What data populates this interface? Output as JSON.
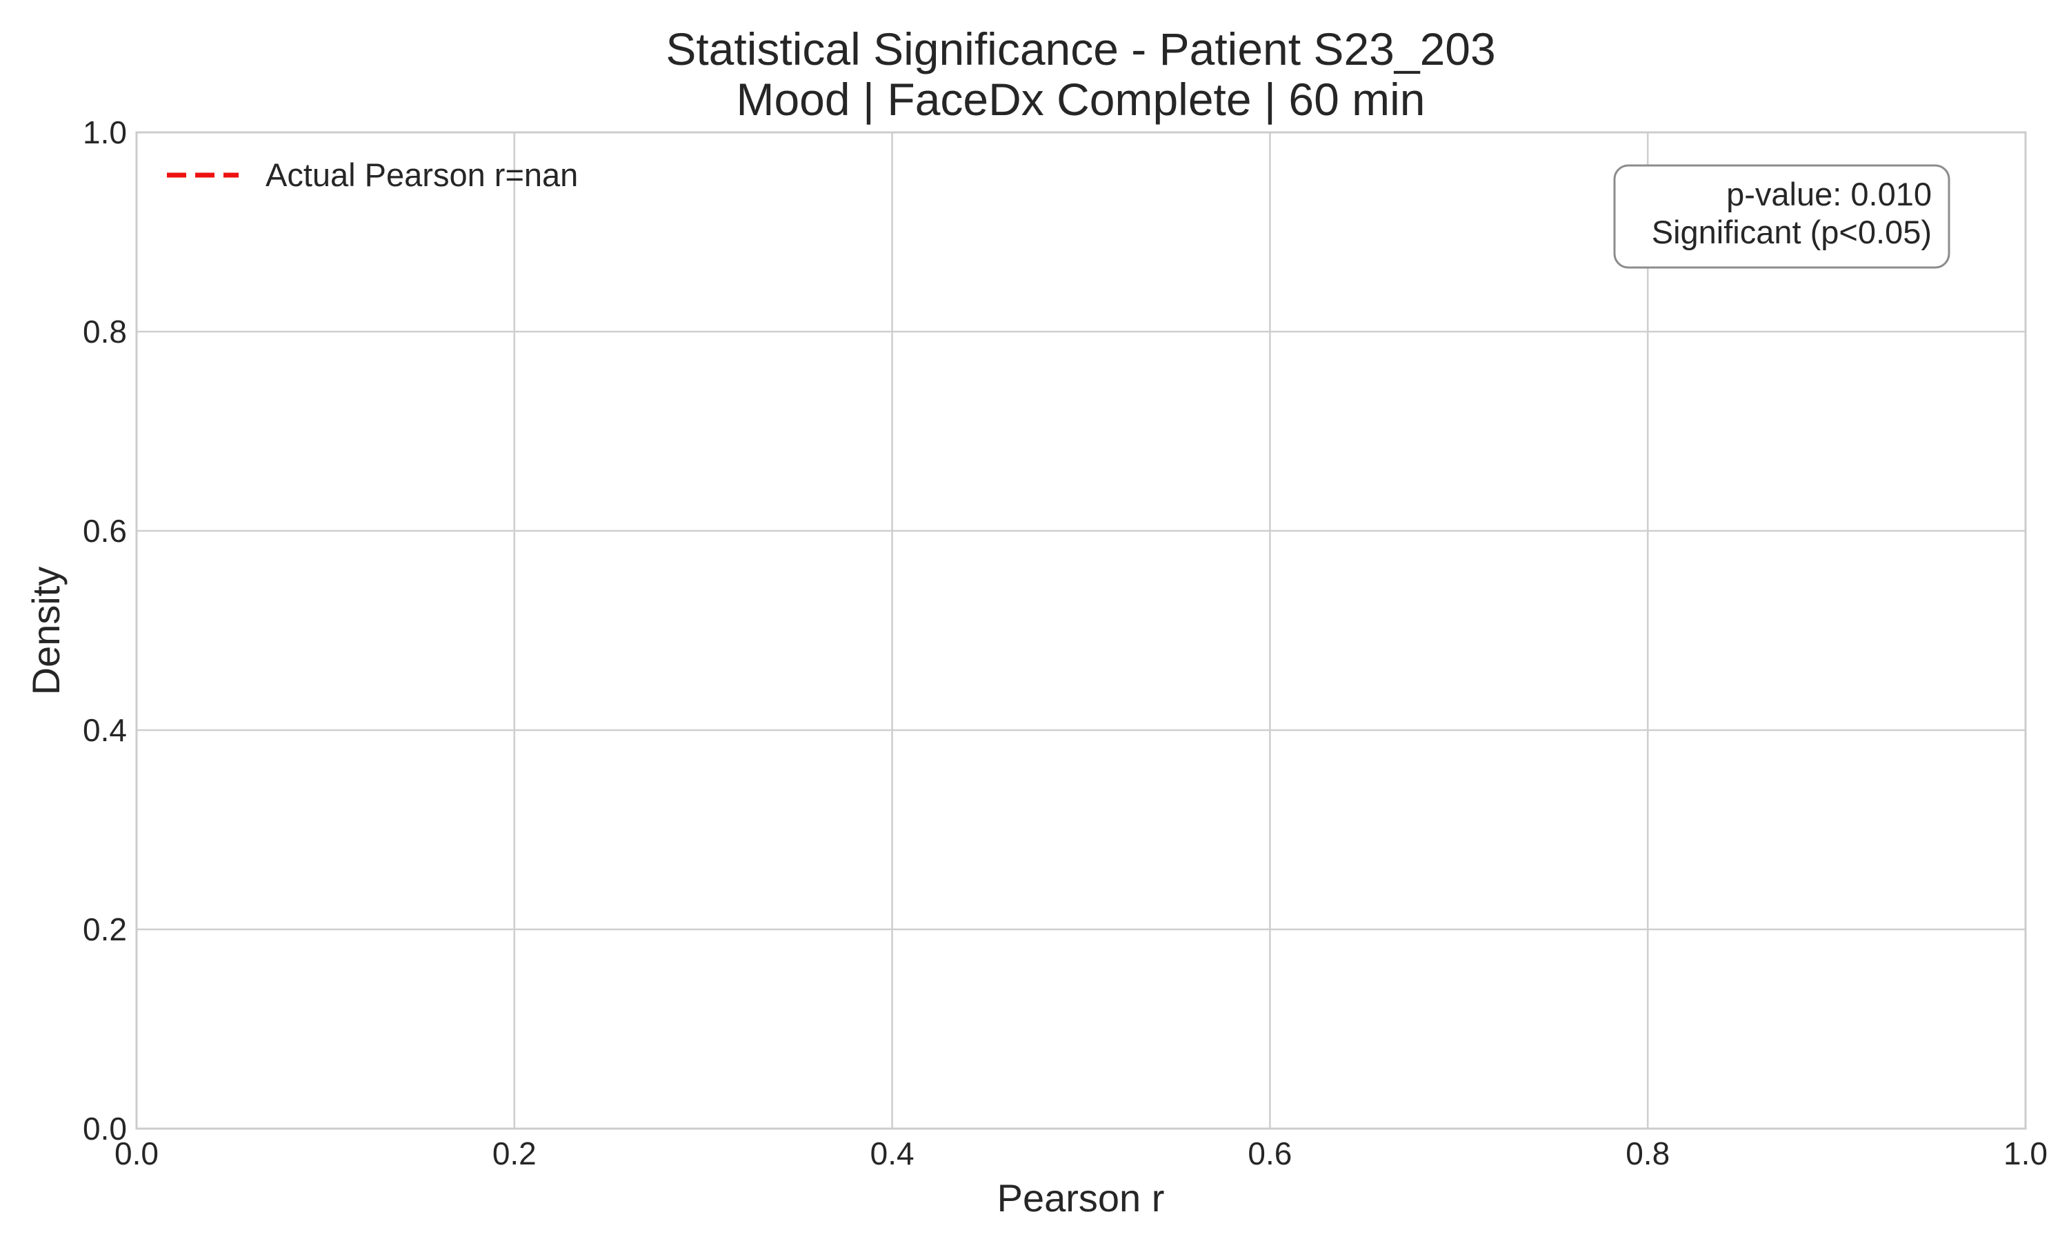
{
  "chart_data": {
    "type": "line",
    "title": "Statistical Significance - Patient S23_203",
    "subtitle": "Mood | FaceDx Complete | 60 min",
    "xlabel": "Pearson r",
    "ylabel": "Density",
    "xlim": [
      0.0,
      1.0
    ],
    "ylim": [
      0.0,
      1.0
    ],
    "x_ticks": [
      0.0,
      0.2,
      0.4,
      0.6,
      0.8,
      1.0
    ],
    "y_ticks": [
      0.0,
      0.2,
      0.4,
      0.6,
      0.8,
      1.0
    ],
    "x_tick_labels": [
      "0.0",
      "0.2",
      "0.4",
      "0.6",
      "0.8",
      "1.0"
    ],
    "y_tick_labels": [
      "0.0",
      "0.2",
      "0.4",
      "0.6",
      "0.8",
      "1.0"
    ],
    "grid": true,
    "series": [],
    "reference_lines": [
      {
        "name": "Actual Pearson r=nan",
        "orientation": "vertical",
        "x": null,
        "color": "#ee1111",
        "style": "dashed"
      }
    ],
    "legend": {
      "position": "top-left",
      "entries": [
        {
          "label": "Actual Pearson r=nan",
          "color": "#ee1111",
          "style": "dashed"
        }
      ]
    },
    "annotation": {
      "position": "top-right",
      "lines": [
        "p-value: 0.010",
        "Significant (p<0.05)"
      ]
    }
  }
}
